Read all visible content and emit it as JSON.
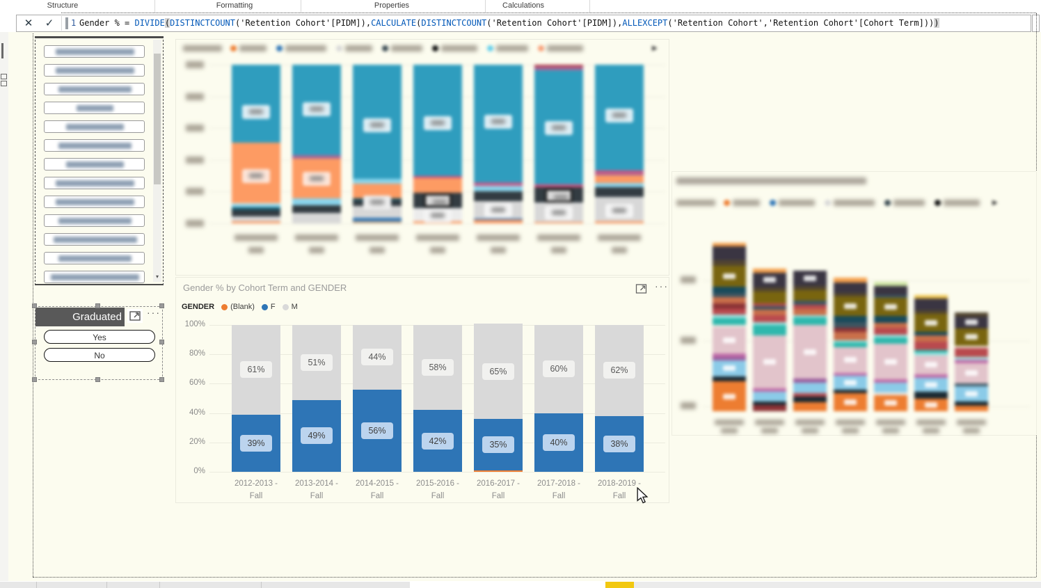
{
  "ribbon": {
    "groups": [
      "Structure",
      "Formatting",
      "Properties",
      "Calculations"
    ]
  },
  "formula_bar": {
    "line_number": "1",
    "cancel_icon": "✕",
    "commit_icon": "✓",
    "code": [
      {
        "t": "Gender % = "
      },
      {
        "t": "DIVIDE",
        "k": true
      },
      {
        "t": "(",
        "h": true
      },
      {
        "t": "DISTINCTCOUNT",
        "k": true
      },
      {
        "t": "('Retention Cohort'[PIDM]),"
      },
      {
        "t": "CALCULATE",
        "k": true
      },
      {
        "t": "("
      },
      {
        "t": "DISTINCTCOUNT",
        "k": true
      },
      {
        "t": "('Retention Cohort'[PIDM]),"
      },
      {
        "t": "ALLEXCEPT",
        "k": true
      },
      {
        "t": "('Retention Cohort','Retention Cohort'[Cohort Term]))"
      },
      {
        "t": ")",
        "h": true
      }
    ]
  },
  "slicer_list": {
    "items": [
      "▒▒▒▒ ▒ ▒▒▒▒▒▒▒▒",
      "▒▒▒▒▒ ▒▒▒ ▒▒▒▒▒",
      "▒▒▒▒ ▒▒▒▒▒▒▒▒▒",
      "▒▒▒ ▒▒▒",
      "▒▒▒▒ ▒▒▒▒▒▒",
      "▒▒▒▒ ▒▒▒▒▒▒▒▒▒",
      "▒▒▒▒ ▒▒▒▒▒▒",
      "▒▒▒▒ ▒▒▒▒▒▒▒ ▒▒",
      "▒▒▒▒▒ ▒▒▒▒▒▒ ▒▒",
      "▒▒▒▒▒ ▒▒▒▒▒▒▒▒",
      "▒▒▒▒▒ ▒▒▒▒▒▒ ▒▒▒",
      "▒▒▒▒ ▒▒▒▒▒▒▒▒▒",
      "▒▒▒▒▒ ▒▒▒▒▒▒▒ ▒▒▒"
    ]
  },
  "graduated_slicer": {
    "title": "Graduated",
    "options": [
      "Yes",
      "No"
    ]
  },
  "chart_data": [
    {
      "type": "bar",
      "stacked_pct": true,
      "blurred": true,
      "title_blurred": "▒▒▒▒ ▒▒▒",
      "legend_title_blurred": "▒▒▒▒ ▒▒▒",
      "legend_items": [
        {
          "color": "#ED7D31",
          "label": "▒▒▒▒▒▒"
        },
        {
          "color": "#2E75B6",
          "label": "▒▒▒▒ ▒▒▒▒"
        },
        {
          "color": "#D8D8D8",
          "label": "▒▒▒▒▒▒"
        },
        {
          "color": "#3A4A52",
          "label": "▒▒▒▒▒▒▒"
        },
        {
          "color": "#111111",
          "label": "▒▒▒▒▒ ▒▒"
        },
        {
          "color": "#62CFEC",
          "label": "▒▒▒▒▒▒▒"
        },
        {
          "color": "#F89F78",
          "label": "▒▒▒▒▒ ▒▒"
        }
      ],
      "y_ticks_blurred": 6,
      "categories_blurred": 7,
      "bars": [
        {
          "segments": [
            [
              "#FD9B63",
              1.5
            ],
            [
              "#D8D8D8",
              3
            ],
            [
              "#333C42",
              4
            ],
            [
              "#16576B",
              1.5
            ],
            [
              "#8AD4EB",
              2.5
            ],
            [
              "#FD9B63",
              38.5
            ],
            [
              "#2F9DBE",
              49
            ]
          ],
          "chips": [
            {
              "at": 70,
              "bg": "#DDEEF5"
            },
            {
              "at": 30,
              "bg": "#FDE5D8"
            }
          ]
        },
        {
          "segments": [
            [
              "#D8D8D8",
              6.5
            ],
            [
              "#333C42",
              5
            ],
            [
              "#8AD4EB",
              4.5
            ],
            [
              "#FD9B63",
              25
            ],
            [
              "#A66999",
              2
            ],
            [
              "#2F9DBE",
              57
            ]
          ],
          "chips": [
            {
              "at": 72,
              "bg": "#DDEEF5"
            },
            {
              "at": 28,
              "bg": "#FDE5D8"
            }
          ]
        },
        {
          "segments": [
            [
              "#C9A887",
              1.5
            ],
            [
              "#2E75B6",
              2
            ],
            [
              "#D8D8D8",
              7.5
            ],
            [
              "#333C42",
              3.5
            ],
            [
              "#16576B",
              1
            ],
            [
              "#FD9B63",
              9.5
            ],
            [
              "#8AD4EB",
              3
            ],
            [
              "#2F9DBE",
              71.5
            ]
          ],
          "chips": [
            {
              "at": 62,
              "bg": "#DDEEF5"
            },
            {
              "at": 13,
              "bg": "#EDEDED"
            }
          ]
        },
        {
          "segments": [
            [
              "#FD9B63",
              1.5
            ],
            [
              "#ECECEC",
              8
            ],
            [
              "#333C42",
              10
            ],
            [
              "#FD9B63",
              9
            ],
            [
              "#D0517E",
              1.5
            ],
            [
              "#2F9DBE",
              70
            ]
          ],
          "chips": [
            {
              "at": 63,
              "bg": "#DDEEF5"
            },
            {
              "at": 14.5,
              "bg": "#DCDCDC",
              "frame": true
            },
            {
              "at": 5,
              "bg": "#F4F4F4"
            }
          ]
        },
        {
          "segments": [
            [
              "#FD9B63",
              2
            ],
            [
              "#2E75B6",
              1
            ],
            [
              "#D8D8D8",
              11
            ],
            [
              "#333C42",
              6
            ],
            [
              "#8AD4EB",
              3.5
            ],
            [
              "#D0517E",
              1.5
            ],
            [
              "#A66999",
              1
            ],
            [
              "#2F9DBE",
              74
            ]
          ],
          "chips": [
            {
              "at": 64,
              "bg": "#DDEEF5"
            },
            {
              "at": 8.5,
              "bg": "#F4F4F4"
            }
          ]
        },
        {
          "segments": [
            [
              "#FD9B63",
              1
            ],
            [
              "#D8D8D8",
              12
            ],
            [
              "#333C42",
              10
            ],
            [
              "#D0517E",
              1.5
            ],
            [
              "#2F9DBE",
              72
            ],
            [
              "#A66999",
              2
            ],
            [
              "#B23A48",
              1.5
            ]
          ],
          "chips": [
            {
              "at": 60,
              "bg": "#DDEEF5"
            },
            {
              "at": 17.5,
              "bg": "#DCDCDC",
              "frame": true
            },
            {
              "at": 6.5,
              "bg": "#F4F4F4"
            }
          ]
        },
        {
          "segments": [
            [
              "#FD9B63",
              1.5
            ],
            [
              "#D8D8D8",
              15
            ],
            [
              "#333C42",
              6
            ],
            [
              "#8AD4EB",
              3
            ],
            [
              "#FD9B63",
              4.5
            ],
            [
              "#A66999",
              1.5
            ],
            [
              "#D0517E",
              1.5
            ],
            [
              "#2F9DBE",
              66.5
            ]
          ],
          "chips": [
            {
              "at": 68,
              "bg": "#DDEEF5"
            },
            {
              "at": 8,
              "bg": "#F4F4F4"
            }
          ]
        }
      ]
    },
    {
      "type": "bar",
      "stacked_pct": true,
      "title": "Gender % by Cohort Term and GENDER",
      "legend_title": "GENDER",
      "categories": [
        "2012-2013 - Fall",
        "2013-2014 - Fall",
        "2014-2015 - Fall",
        "2015-2016 - Fall",
        "2016-2017 - Fall",
        "2017-2018 - Fall",
        "2018-2019 - Fall"
      ],
      "series": [
        {
          "name": "(Blank)",
          "color": "#ED7D31",
          "values": [
            0,
            0,
            0,
            0,
            0.8,
            0,
            0
          ]
        },
        {
          "name": "F",
          "color": "#2E75B6",
          "values": [
            39,
            49,
            56,
            42,
            35,
            40,
            38
          ]
        },
        {
          "name": "M",
          "color": "#D9D9D9",
          "values": [
            61,
            51,
            44,
            58,
            65,
            60,
            62
          ]
        }
      ],
      "labels": {
        "F": [
          "39%",
          "49%",
          "56%",
          "42%",
          "35%",
          "40%",
          "38%"
        ],
        "M": [
          "61%",
          "51%",
          "44%",
          "58%",
          "65%",
          "60%",
          "62%"
        ]
      },
      "y_ticks": [
        "0%",
        "20%",
        "40%",
        "60%",
        "80%",
        "100%"
      ],
      "label_style": {
        "F_bg": "#BCD4EE",
        "M_bg": "#F1F1EF",
        "M_text": "#595959"
      }
    },
    {
      "type": "bar",
      "stacked": true,
      "blurred": true,
      "title_blurred": "▒▒▒▒▒▒ ▒▒▒▒ ▒▒ ▒▒▒▒▒▒ ▒▒▒▒ ▒▒▒ ▒▒▒▒▒▒▒▒",
      "legend_title_blurred": "▒▒▒▒▒▒▒▒",
      "legend_items": [
        {
          "color": "#ED7D31",
          "label": "▒▒▒▒▒▒"
        },
        {
          "color": "#2E75B6",
          "label": "▒▒▒ ▒▒▒▒"
        },
        {
          "color": "#D8D8D8",
          "label": "▒▒▒▒ ▒▒▒▒"
        },
        {
          "color": "#3A4A52",
          "label": "▒▒▒▒▒▒▒"
        },
        {
          "color": "#111111",
          "label": "▒▒▒▒▒▒▒▒"
        }
      ],
      "y_ticks_blurred": 3,
      "categories_blurred": 7,
      "rel_heights": [
        1,
        0.847,
        0.835,
        0.793,
        0.769,
        0.69,
        0.587
      ],
      "bars": [
        {
          "segments": [
            [
              "#ED7D31",
              17
            ],
            [
              "#1B2A33",
              3
            ],
            [
              "#8BCBE8",
              9
            ],
            [
              "#9C5F9E",
              2
            ],
            [
              "#C06BA8",
              2
            ],
            [
              "#E2C4CB",
              15
            ],
            [
              "#EFE9E0",
              1
            ],
            [
              "#2FB8AD",
              4
            ],
            [
              "#9FE3E0",
              2
            ],
            [
              "#B94A4E",
              3.5
            ],
            [
              "#8C3336",
              3
            ],
            [
              "#C96F4A",
              3.5
            ],
            [
              "#3D5561",
              2.5
            ],
            [
              "#174A5B",
              3.5
            ],
            [
              "#79650F",
              12
            ],
            [
              "#52452F",
              3
            ],
            [
              "#3A3542",
              8
            ],
            [
              "#F5A04C",
              2
            ]
          ]
        },
        {
          "segments": [
            [
              "#8C3336",
              4
            ],
            [
              "#1B2A33",
              2
            ],
            [
              "#8BCBE8",
              6
            ],
            [
              "#C06BA8",
              2.5
            ],
            [
              "#E2C4CB",
              33
            ],
            [
              "#2FB8AD",
              6.5
            ],
            [
              "#9FE3E0",
              1.5
            ],
            [
              "#B94A4E",
              4.5
            ],
            [
              "#C96F4A",
              3.5
            ],
            [
              "#3D5561",
              2
            ],
            [
              "#B94A4E",
              2
            ],
            [
              "#79650F",
              7
            ],
            [
              "#52452F",
              3
            ],
            [
              "#3A3542",
              9
            ],
            [
              "#F5A04C",
              2.5
            ]
          ]
        },
        {
          "segments": [
            [
              "#ED7D31",
              6
            ],
            [
              "#1B2A33",
              3.5
            ],
            [
              "#B94A4E",
              2
            ],
            [
              "#8BCBE8",
              7
            ],
            [
              "#9C5F9E",
              2.5
            ],
            [
              "#E2C4CB",
              35
            ],
            [
              "#2FB8AD",
              5
            ],
            [
              "#9FE3E0",
              1
            ],
            [
              "#C96F4A",
              4
            ],
            [
              "#B94A4E",
              3
            ],
            [
              "#3D5561",
              2.5
            ],
            [
              "#79650F",
              7
            ],
            [
              "#52452F",
              2.5
            ],
            [
              "#3A3542",
              10
            ]
          ]
        },
        {
          "segments": [
            [
              "#ED7D31",
              12
            ],
            [
              "#1B2A33",
              2.5
            ],
            [
              "#8BCBE8",
              9
            ],
            [
              "#C06BA8",
              2
            ],
            [
              "#E2C4CB",
              17
            ],
            [
              "#2FB8AD",
              3
            ],
            [
              "#9FE3E0",
              1.5
            ],
            [
              "#C96F4A",
              5.5
            ],
            [
              "#8C3336",
              3
            ],
            [
              "#3D5561",
              3.5
            ],
            [
              "#174A5B",
              4
            ],
            [
              "#79650F",
              13
            ],
            [
              "#52452F",
              2.5
            ],
            [
              "#3A3542",
              7
            ],
            [
              "#F5A04C",
              3
            ]
          ]
        },
        {
          "segments": [
            [
              "#ED7D31",
              11
            ],
            [
              "#EFE9E0",
              1.5
            ],
            [
              "#8BCBE8",
              7
            ],
            [
              "#C06BA8",
              2
            ],
            [
              "#E2C4CB",
              24
            ],
            [
              "#2FB8AD",
              4.5
            ],
            [
              "#9FE3E0",
              1.5
            ],
            [
              "#B94A4E",
              5
            ],
            [
              "#C96F4A",
              3
            ],
            [
              "#174A5B",
              5
            ],
            [
              "#79650F",
              12
            ],
            [
              "#3D5561",
              2
            ],
            [
              "#3A3542",
              6
            ],
            [
              "#CFE6A3",
              3
            ]
          ]
        },
        {
          "segments": [
            [
              "#ED7D31",
              9
            ],
            [
              "#1B2A33",
              4.5
            ],
            [
              "#8BCBE8",
              10
            ],
            [
              "#C06BA8",
              2.5
            ],
            [
              "#E2C4CB",
              13
            ],
            [
              "#9FE3E0",
              2
            ],
            [
              "#2FB8AD",
              2
            ],
            [
              "#B94A4E",
              6
            ],
            [
              "#C96F4A",
              4
            ],
            [
              "#174A5B",
              2.5
            ],
            [
              "#79650F",
              13
            ],
            [
              "#52452F",
              2.5
            ],
            [
              "#3A3542",
              8
            ],
            [
              "#EFC54D",
              2.5
            ]
          ]
        },
        {
          "segments": [
            [
              "#ED7D31",
              4
            ],
            [
              "#1B2A33",
              3.5
            ],
            [
              "#8BCBE8",
              11
            ],
            [
              "#3D5561",
              2.5
            ],
            [
              "#E2C4CB",
              15
            ],
            [
              "#C06BA8",
              2.5
            ],
            [
              "#9FE3E0",
              2
            ],
            [
              "#B94A4E",
              7
            ],
            [
              "#EFE9E0",
              1.5
            ],
            [
              "#79650F",
              13
            ],
            [
              "#3A3542",
              9
            ],
            [
              "#52452F",
              3
            ]
          ]
        }
      ]
    }
  ]
}
